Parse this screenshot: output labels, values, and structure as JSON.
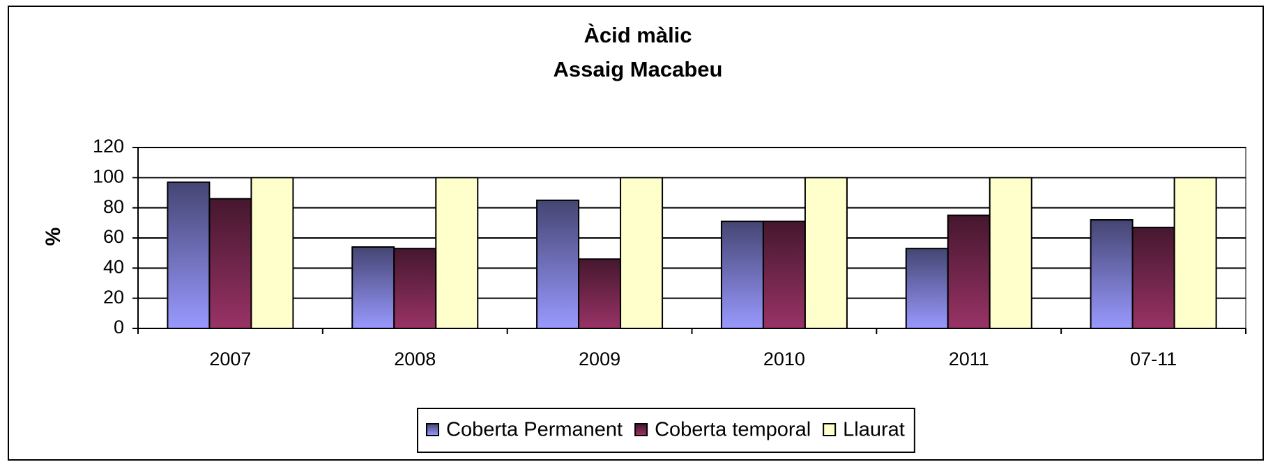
{
  "chart_data": {
    "type": "bar",
    "title": "Àcid màlic",
    "subtitle": "Assaig Macabeu",
    "y_label": "%",
    "categories": [
      "2007",
      "2008",
      "2009",
      "2010",
      "2011",
      "07-11"
    ],
    "series": [
      {
        "name": "Coberta Permanent",
        "color": "#9999ff",
        "values": [
          97,
          54,
          85,
          71,
          53,
          72
        ]
      },
      {
        "name": "Coberta temporal",
        "color": "#993366",
        "values": [
          86,
          53,
          46,
          71,
          75,
          67
        ]
      },
      {
        "name": "Llaurat",
        "color": "#ffffcc",
        "values": [
          100,
          100,
          100,
          100,
          100,
          100
        ]
      }
    ],
    "ylim": [
      0,
      120
    ],
    "yticks": [
      0,
      20,
      40,
      60,
      80,
      100,
      120
    ],
    "grid": true,
    "legend": "bottom"
  }
}
